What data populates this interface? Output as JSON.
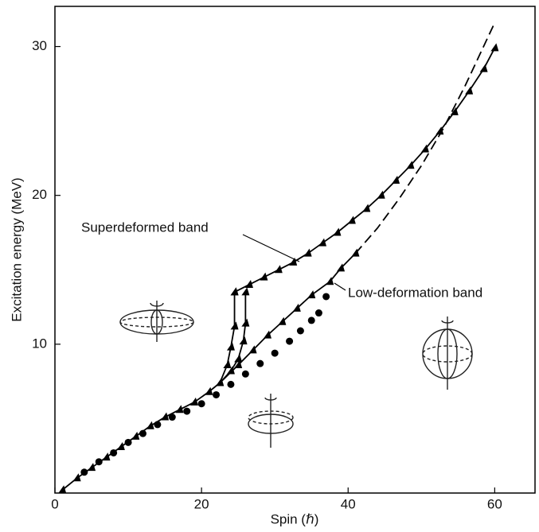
{
  "chart_data": {
    "type": "line",
    "xlabel": "Spin (ℏ)",
    "ylabel": "Excitation energy (MeV)",
    "annotations": [
      "Superdeformed band",
      "Low-deformation band"
    ],
    "xlim": [
      0,
      65.5
    ],
    "ylim": [
      0,
      32.7
    ],
    "xticks": [
      0,
      20,
      40,
      60
    ],
    "yticks": [
      10,
      20,
      30
    ],
    "series": [
      {
        "color": "#000000",
        "marker": "triangle",
        "line": "solid",
        "x": [
          1,
          3,
          5,
          7,
          9,
          11,
          13,
          15,
          17,
          19,
          21,
          22.5
        ],
        "values": [
          0.2,
          1.0,
          1.7,
          2.4,
          3.1,
          3.8,
          4.5,
          5.1,
          5.6,
          6.1,
          6.8,
          7.4
        ]
      },
      {
        "color": "#000000",
        "marker": "triangle",
        "line": "solid",
        "x": [
          22.5,
          23.5,
          24,
          24.5,
          24.5
        ],
        "values": [
          7.4,
          8.6,
          9.8,
          11.2,
          13.5
        ]
      },
      {
        "color": "#000000",
        "marker": "triangle",
        "line": "solid",
        "x": [
          22.5,
          24,
          25,
          25.7,
          26,
          26
        ],
        "values": [
          7.4,
          8.2,
          9.0,
          10.2,
          11.4,
          13.5
        ]
      },
      {
        "name": "Superdeformed band",
        "color": "#000000",
        "marker": "triangle",
        "line": "solid",
        "x": [
          24.5,
          26.5,
          28.5,
          30.5,
          32.5,
          34.5,
          36.5,
          38.5,
          40.5,
          42.5,
          44.5,
          46.5,
          48.5,
          50.5,
          52.5,
          54.5,
          56.5,
          58.5,
          60
        ],
        "values": [
          13.5,
          14.0,
          14.5,
          15.0,
          15.5,
          16.1,
          16.8,
          17.5,
          18.3,
          19.1,
          20.0,
          21.0,
          22.0,
          23.1,
          24.3,
          25.6,
          27.0,
          28.5,
          29.9
        ]
      },
      {
        "name": "Low-deformation band",
        "color": "#000000",
        "marker": "triangle",
        "line": "solid",
        "x": [
          22.5,
          25,
          27,
          29,
          31,
          33,
          35,
          37.5,
          39,
          41
        ],
        "values": [
          7.4,
          8.6,
          9.6,
          10.6,
          11.5,
          12.4,
          13.3,
          14.2,
          15.1,
          16.1
        ]
      },
      {
        "color": "#000000",
        "marker": "none",
        "line": "dashed",
        "x": [
          41,
          44,
          47,
          50,
          53,
          56,
          60
        ],
        "values": [
          16.1,
          17.8,
          19.8,
          22.0,
          24.5,
          27.4,
          31.6
        ]
      },
      {
        "color": "#000000",
        "marker": "circle",
        "line": "none",
        "x": [
          4,
          6,
          8,
          10,
          12,
          14,
          16,
          18,
          20,
          22,
          24,
          26,
          28,
          30,
          32,
          33.5,
          35,
          36,
          37
        ],
        "values": [
          1.4,
          2.1,
          2.7,
          3.4,
          4.0,
          4.6,
          5.1,
          5.5,
          6.0,
          6.6,
          7.3,
          8.0,
          8.7,
          9.4,
          10.2,
          10.9,
          11.6,
          12.1,
          13.2
        ]
      }
    ]
  }
}
